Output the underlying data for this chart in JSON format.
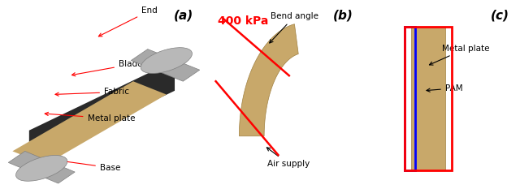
{
  "figsize": [
    6.4,
    2.33
  ],
  "dpi": 100,
  "background_color": "#ffffff",
  "panel_a_label": "(a)",
  "panel_b_label": "(b)",
  "panel_c_label": "(c)",
  "label_fontsize": 11,
  "ann_fontsize": 7.5,
  "kpa_fontsize": 10,
  "panel_a_bg": "#e0e0e0",
  "panel_b_bg": "#c8c8c8",
  "panel_c_bg": "#d0d0d0",
  "fabric_color": "#c8a86a",
  "fabric_edge": "#a08040",
  "body_dark": "#2a2a2a",
  "cylinder_color": "#a8a8a8",
  "cylinder_edge": "#808080",
  "red_color": "#ff0000",
  "blue_color": "#0000ff",
  "black_color": "#000000"
}
